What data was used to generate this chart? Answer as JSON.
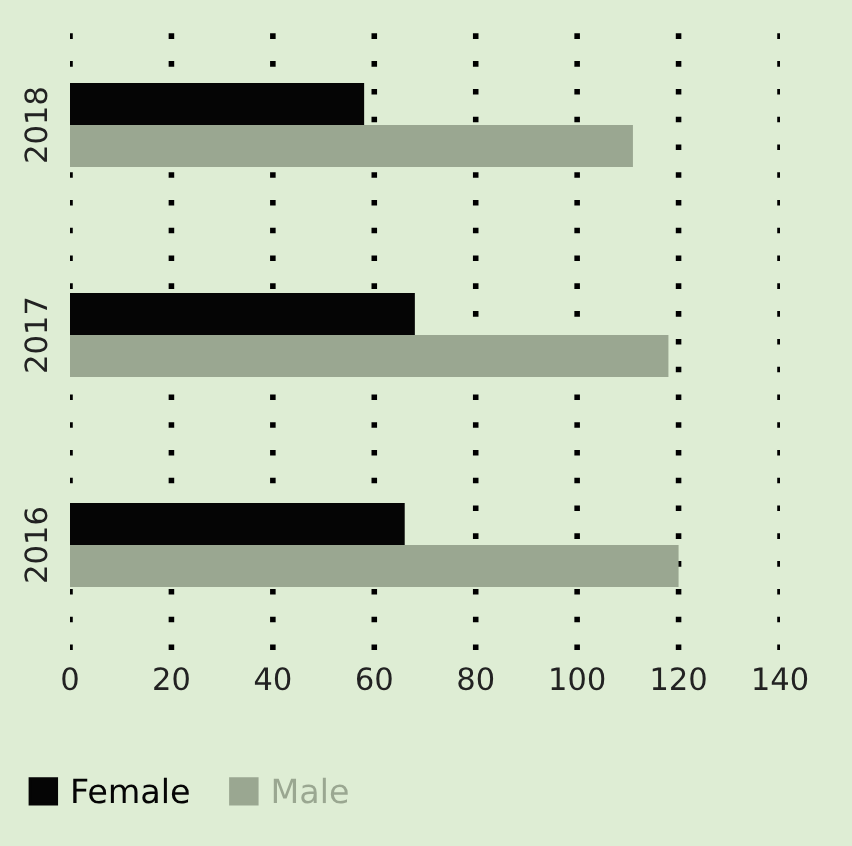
{
  "chart_data": {
    "type": "bar",
    "orientation": "horizontal",
    "categories": [
      "2018",
      "2017",
      "2016"
    ],
    "series": [
      {
        "name": "Female",
        "color": "#050505",
        "values": [
          58,
          68,
          66
        ]
      },
      {
        "name": "Male",
        "color": "#9aa791",
        "values": [
          111,
          118,
          120
        ]
      }
    ],
    "xlim": [
      0,
      140
    ],
    "xticks": [
      0,
      20,
      40,
      60,
      80,
      100,
      120,
      140
    ],
    "grid": "x",
    "legend": "bottom left"
  }
}
